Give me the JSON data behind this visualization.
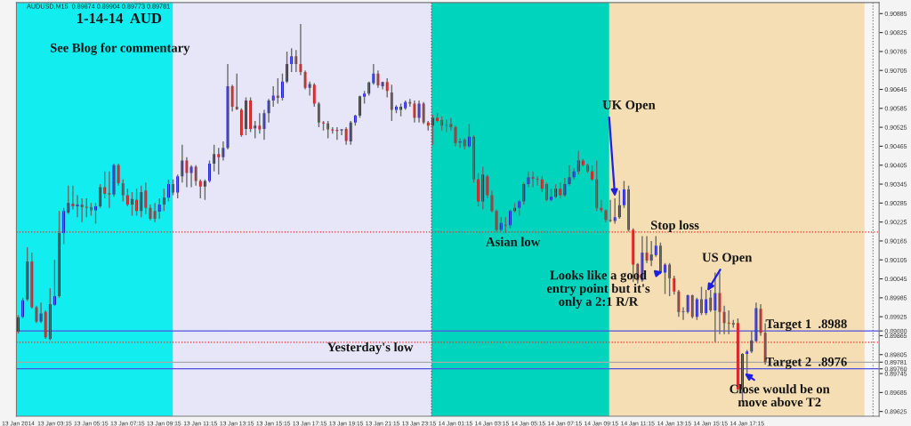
{
  "chart_data": {
    "type": "candlestick",
    "title": "1-14-14  AUD",
    "subtitle": "AUDUSD,M15  0.89874 0.89904 0.89773 0.89781",
    "colors": [
      "#0000e6",
      "#0000e6",
      "#0000e6",
      "#e60000",
      "#e60000",
      "#0000e6",
      "#e60000",
      "#0000e6",
      "#0000e6",
      "#0000e6",
      "#0000e6",
      "#0000e6",
      "#e60000",
      "#0000e6",
      "#e60000",
      "#e60000",
      "#e60000",
      "#0000e6",
      "#0000e6",
      "#e60000",
      "#e60000",
      "#0000e6",
      "#e60000",
      "#e60000",
      "#e60000",
      "#0000e6",
      "#e60000",
      "#0000e6",
      "#e60000",
      "#e60000",
      "#e60000",
      "#0000e6",
      "#0000e6",
      "#0000e6",
      "#e60000",
      "#0000e6",
      "#0000e6",
      "#e60000",
      "#0000e6",
      "#e60000",
      "#e60000",
      "#0000e6",
      "#0000e6",
      "#0000e6",
      "#e60000",
      "#0000e6",
      "#0000e6",
      "#e60000",
      "#e60000",
      "#e60000",
      "#0000e6",
      "#e60000",
      "#0000e6",
      "#e60000",
      "#0000e6",
      "#0000e6",
      "#0000e6",
      "#e60000",
      "#0000e6",
      "#0000e6",
      "#0000e6",
      "#e60000",
      "#e60000",
      "#e60000",
      "#0000e6",
      "#e60000",
      "#e60000",
      "#e60000",
      "#e60000",
      "#e60000",
      "#e60000",
      "#0000e6",
      "#e60000",
      "#0000e6",
      "#0000e6",
      "#0000e6",
      "#0000e6",
      "#0000e6",
      "#0000e6",
      "#e60000",
      "#0000e6",
      "#e60000",
      "#e60000",
      "#0000e6",
      "#0000e6",
      "#0000e6",
      "#e60000",
      "#e60000",
      "#0000e6",
      "#e60000",
      "#e60000",
      "#0000e6",
      "#e60000",
      "#e60000",
      "#0000e6",
      "#e60000",
      "#e60000",
      "#0000e6",
      "#e60000",
      "#0000e6",
      "#e60000",
      "#e60000",
      "#0000e6",
      "#e60000",
      "#e60000",
      "#e60000",
      "#0000e6",
      "#e60000",
      "#0000e6",
      "#0000e6",
      "#0000e6",
      "#0000e6",
      "#0000e6",
      "#e60000",
      "#e60000",
      "#e60000",
      "#e60000",
      "#0000e6",
      "#0000e6",
      "#e60000",
      "#0000e6",
      "#0000e6",
      "#0000e6",
      "#0000e6",
      "#e60000",
      "#e60000",
      "#e60000",
      "#e60000",
      "#e60000",
      "#e60000",
      "#e60000",
      "#0000e6",
      "#0000e6",
      "#0000e6",
      "#e60000",
      "#e60000",
      "#e60000",
      "#0000e6",
      "#e60000",
      "#0000e6",
      "#0000e6",
      "#e60000",
      "#0000e6",
      "#e60000",
      "#e60000",
      "#e60000",
      "#0000e6",
      "#0000e6",
      "#e60000",
      "#0000e6",
      "#e60000",
      "#0000e6",
      "#e60000",
      "#0000e6",
      "#e60000",
      "#e60000",
      "#e60000",
      "#e60000",
      "#e60000",
      "#0000e6",
      "#0000e6",
      "#0000e6",
      "#0000e6",
      "#e60000",
      "#e60000"
    ],
    "x": [
      "2014-01-13T01:15",
      "2014-01-13T01:30",
      "2014-01-13T01:45",
      "2014-01-13T02:00",
      "2014-01-13T02:15",
      "2014-01-13T02:30",
      "2014-01-13T02:45",
      "2014-01-13T03:00",
      "2014-01-13T03:15",
      "2014-01-13T03:30",
      "2014-01-13T03:45",
      "2014-01-13T04:00",
      "2014-01-13T04:15",
      "2014-01-13T04:30",
      "2014-01-13T04:45",
      "2014-01-13T05:00",
      "2014-01-13T05:15",
      "2014-01-13T05:30",
      "2014-01-13T05:45",
      "2014-01-13T06:00",
      "2014-01-13T06:15",
      "2014-01-13T06:30",
      "2014-01-13T06:45",
      "2014-01-13T07:00",
      "2014-01-13T07:15",
      "2014-01-13T07:30",
      "2014-01-13T07:45",
      "2014-01-13T08:00",
      "2014-01-13T08:15",
      "2014-01-13T08:30",
      "2014-01-13T08:45",
      "2014-01-13T09:00",
      "2014-01-13T09:15",
      "2014-01-13T09:30",
      "2014-01-13T09:45",
      "2014-01-13T10:00",
      "2014-01-13T10:15",
      "2014-01-13T10:30",
      "2014-01-13T10:45",
      "2014-01-13T11:00",
      "2014-01-13T11:15",
      "2014-01-13T11:30",
      "2014-01-13T11:45",
      "2014-01-13T12:00",
      "2014-01-13T12:15",
      "2014-01-13T12:30",
      "2014-01-13T12:45",
      "2014-01-13T13:00",
      "2014-01-13T13:15",
      "2014-01-13T13:30",
      "2014-01-13T13:45",
      "2014-01-13T14:00",
      "2014-01-13T14:15",
      "2014-01-13T14:30",
      "2014-01-13T14:45",
      "2014-01-13T15:00",
      "2014-01-13T15:15",
      "2014-01-13T15:30",
      "2014-01-13T15:45",
      "2014-01-13T16:00",
      "2014-01-13T16:15",
      "2014-01-13T16:30",
      "2014-01-13T16:45",
      "2014-01-13T17:00",
      "2014-01-13T17:15",
      "2014-01-13T17:30",
      "2014-01-13T17:45",
      "2014-01-13T18:00",
      "2014-01-13T18:15",
      "2014-01-13T18:30",
      "2014-01-13T18:45",
      "2014-01-13T19:00",
      "2014-01-13T19:15",
      "2014-01-13T19:30",
      "2014-01-13T19:45",
      "2014-01-13T20:00",
      "2014-01-13T20:15",
      "2014-01-13T20:30",
      "2014-01-13T20:45",
      "2014-01-13T21:00",
      "2014-01-13T21:15",
      "2014-01-13T21:30",
      "2014-01-13T21:45",
      "2014-01-13T22:00",
      "2014-01-13T22:15",
      "2014-01-13T22:30",
      "2014-01-13T22:45",
      "2014-01-13T23:00",
      "2014-01-13T23:15",
      "2014-01-13T23:30",
      "2014-01-13T23:45",
      "2014-01-14T00:00",
      "2014-01-14T00:15",
      "2014-01-14T00:30",
      "2014-01-14T00:45",
      "2014-01-14T01:00",
      "2014-01-14T01:15",
      "2014-01-14T01:30",
      "2014-01-14T01:45",
      "2014-01-14T02:00",
      "2014-01-14T02:15",
      "2014-01-14T02:30",
      "2014-01-14T02:45",
      "2014-01-14T03:00",
      "2014-01-14T03:15",
      "2014-01-14T03:30",
      "2014-01-14T03:45",
      "2014-01-14T04:00",
      "2014-01-14T04:15",
      "2014-01-14T04:30",
      "2014-01-14T04:45",
      "2014-01-14T05:00",
      "2014-01-14T05:15",
      "2014-01-14T05:30",
      "2014-01-14T05:45",
      "2014-01-14T06:00",
      "2014-01-14T06:15",
      "2014-01-14T06:30",
      "2014-01-14T06:45",
      "2014-01-14T07:00",
      "2014-01-14T07:15",
      "2014-01-14T07:30",
      "2014-01-14T07:45",
      "2014-01-14T08:00",
      "2014-01-14T08:15",
      "2014-01-14T08:30",
      "2014-01-14T08:45",
      "2014-01-14T09:00",
      "2014-01-14T09:15",
      "2014-01-14T09:30",
      "2014-01-14T09:45",
      "2014-01-14T10:00",
      "2014-01-14T10:15",
      "2014-01-14T10:30",
      "2014-01-14T10:45",
      "2014-01-14T11:00",
      "2014-01-14T11:15",
      "2014-01-14T11:30",
      "2014-01-14T11:45",
      "2014-01-14T12:00",
      "2014-01-14T12:15",
      "2014-01-14T12:30",
      "2014-01-14T12:45",
      "2014-01-14T13:00",
      "2014-01-14T13:15",
      "2014-01-14T13:30",
      "2014-01-14T13:45",
      "2014-01-14T14:00",
      "2014-01-14T14:15",
      "2014-01-14T14:30",
      "2014-01-14T14:45",
      "2014-01-14T15:00",
      "2014-01-14T15:15",
      "2014-01-14T15:30",
      "2014-01-14T15:45",
      "2014-01-14T16:00",
      "2014-01-14T16:15",
      "2014-01-14T16:30",
      "2014-01-14T16:45",
      "2014-01-14T17:00",
      "2014-01-14T17:15",
      "2014-01-14T17:30",
      "2014-01-14T17:45",
      "2014-01-14T18:00",
      "2014-01-14T18:15"
    ],
    "ohlc": [
      [
        0.89878,
        0.8993,
        0.89872,
        0.89923
      ],
      [
        0.89925,
        0.89985,
        0.8992,
        0.89977
      ],
      [
        0.8998,
        0.90145,
        0.89975,
        0.901
      ],
      [
        0.901,
        0.90128,
        0.8995,
        0.89955
      ],
      [
        0.89955,
        0.8996,
        0.89905,
        0.8991
      ],
      [
        0.8991,
        0.8997,
        0.89905,
        0.89935
      ],
      [
        0.8994,
        0.89945,
        0.89855,
        0.8986
      ],
      [
        0.89855,
        0.90015,
        0.8985,
        0.89965
      ],
      [
        0.89963,
        0.90105,
        0.8996,
        0.8999
      ],
      [
        0.8999,
        0.9026,
        0.89985,
        0.9019
      ],
      [
        0.9019,
        0.9027,
        0.90155,
        0.9026
      ],
      [
        0.90255,
        0.9034,
        0.9025,
        0.90285
      ],
      [
        0.90283,
        0.9034,
        0.90265,
        0.90275
      ],
      [
        0.90275,
        0.9031,
        0.9024,
        0.9028
      ],
      [
        0.9028,
        0.903,
        0.90225,
        0.90272
      ],
      [
        0.90272,
        0.903,
        0.9024,
        0.90272
      ],
      [
        0.90272,
        0.90285,
        0.90245,
        0.90262
      ],
      [
        0.90262,
        0.90285,
        0.9022,
        0.90275
      ],
      [
        0.90275,
        0.90345,
        0.9027,
        0.90335
      ],
      [
        0.90335,
        0.90385,
        0.903,
        0.90315
      ],
      [
        0.90316,
        0.90385,
        0.9027,
        0.90312
      ],
      [
        0.90312,
        0.9041,
        0.90305,
        0.90405
      ],
      [
        0.90405,
        0.9041,
        0.9034,
        0.90348
      ],
      [
        0.90348,
        0.9036,
        0.9029,
        0.9031
      ],
      [
        0.9031,
        0.9033,
        0.90275,
        0.9028
      ],
      [
        0.9028,
        0.9032,
        0.90245,
        0.90298
      ],
      [
        0.90295,
        0.9033,
        0.90245,
        0.9026
      ],
      [
        0.9026,
        0.9034,
        0.9024,
        0.9032
      ],
      [
        0.90325,
        0.9035,
        0.9025,
        0.9027
      ],
      [
        0.9027,
        0.9028,
        0.9023,
        0.90235
      ],
      [
        0.9026,
        0.90285,
        0.90225,
        0.90235
      ],
      [
        0.90258,
        0.903,
        0.90235,
        0.9028
      ],
      [
        0.9028,
        0.9033,
        0.9026,
        0.90302
      ],
      [
        0.90302,
        0.9036,
        0.9029,
        0.90345
      ],
      [
        0.90345,
        0.9036,
        0.9031,
        0.90318
      ],
      [
        0.90318,
        0.90375,
        0.903,
        0.9037
      ],
      [
        0.9037,
        0.9047,
        0.9035,
        0.9042
      ],
      [
        0.9042,
        0.9043,
        0.90335,
        0.9038
      ],
      [
        0.9038,
        0.90405,
        0.90335,
        0.904
      ],
      [
        0.904,
        0.90405,
        0.9034,
        0.90355
      ],
      [
        0.90355,
        0.9036,
        0.903,
        0.90337
      ],
      [
        0.90337,
        0.9036,
        0.90295,
        0.90355
      ],
      [
        0.90355,
        0.9042,
        0.9035,
        0.9041
      ],
      [
        0.9041,
        0.9047,
        0.90385,
        0.9044
      ],
      [
        0.9044,
        0.9046,
        0.90375,
        0.9043
      ],
      [
        0.9043,
        0.9048,
        0.9042,
        0.9046
      ],
      [
        0.9046,
        0.90725,
        0.90455,
        0.90655
      ],
      [
        0.90655,
        0.9066,
        0.90575,
        0.9059
      ],
      [
        0.9059,
        0.90695,
        0.9058,
        0.90582
      ],
      [
        0.9058,
        0.90585,
        0.90495,
        0.905
      ],
      [
        0.9052,
        0.9062,
        0.905,
        0.9061
      ],
      [
        0.9061,
        0.9062,
        0.9051,
        0.9052
      ],
      [
        0.90522,
        0.90545,
        0.9049,
        0.9053
      ],
      [
        0.9053,
        0.9057,
        0.90505,
        0.90518
      ],
      [
        0.9052,
        0.9058,
        0.90485,
        0.9057
      ],
      [
        0.9057,
        0.90615,
        0.9054,
        0.9061
      ],
      [
        0.9061,
        0.90655,
        0.9059,
        0.90625
      ],
      [
        0.90625,
        0.9068,
        0.906,
        0.90618
      ],
      [
        0.90618,
        0.90695,
        0.9061,
        0.9067
      ],
      [
        0.9067,
        0.90765,
        0.90665,
        0.90725
      ],
      [
        0.90725,
        0.90775,
        0.907,
        0.9075
      ],
      [
        0.9075,
        0.9077,
        0.907,
        0.90725
      ],
      [
        0.90725,
        0.90852,
        0.9069,
        0.907
      ],
      [
        0.907,
        0.90705,
        0.90645,
        0.9065
      ],
      [
        0.9065,
        0.9067,
        0.90625,
        0.90662
      ],
      [
        0.9066,
        0.90665,
        0.9059,
        0.906
      ],
      [
        0.906,
        0.90605,
        0.90525,
        0.9054
      ],
      [
        0.9054,
        0.90545,
        0.90515,
        0.90537
      ],
      [
        0.90537,
        0.90545,
        0.9049,
        0.90518
      ],
      [
        0.90518,
        0.90525,
        0.90505,
        0.90515
      ],
      [
        0.90515,
        0.90525,
        0.90485,
        0.90515
      ],
      [
        0.90515,
        0.9052,
        0.905,
        0.90518
      ],
      [
        0.9052,
        0.90525,
        0.9047,
        0.90482
      ],
      [
        0.9048,
        0.90545,
        0.9047,
        0.9054
      ],
      [
        0.9054,
        0.90565,
        0.9053,
        0.90562
      ],
      [
        0.90562,
        0.90625,
        0.90555,
        0.90623
      ],
      [
        0.90622,
        0.9064,
        0.906,
        0.90632
      ],
      [
        0.90632,
        0.9067,
        0.90625,
        0.90667
      ],
      [
        0.90665,
        0.90725,
        0.9066,
        0.90695
      ],
      [
        0.90695,
        0.90705,
        0.9065,
        0.90658
      ],
      [
        0.90655,
        0.9067,
        0.90645,
        0.90668
      ],
      [
        0.90668,
        0.9068,
        0.9062,
        0.9064
      ],
      [
        0.90635,
        0.9066,
        0.90545,
        0.9058
      ],
      [
        0.9058,
        0.90595,
        0.9057,
        0.9059
      ],
      [
        0.9058,
        0.906,
        0.9056,
        0.9059
      ],
      [
        0.90585,
        0.9061,
        0.9058,
        0.90605
      ],
      [
        0.90605,
        0.90615,
        0.9059,
        0.906
      ],
      [
        0.906,
        0.9061,
        0.9054,
        0.90555
      ],
      [
        0.90555,
        0.9061,
        0.9054,
        0.906
      ],
      [
        0.906,
        0.90605,
        0.90535,
        0.9054
      ],
      [
        0.9054,
        0.90545,
        0.90515,
        0.9053
      ],
      [
        0.9053,
        0.90565,
        0.9047,
        0.90555
      ],
      [
        0.90555,
        0.9057,
        0.9054,
        0.90545
      ],
      [
        0.90548,
        0.9056,
        0.90515,
        0.9053
      ],
      [
        0.9053,
        0.9055,
        0.9051,
        0.90532
      ],
      [
        0.90535,
        0.90555,
        0.90515,
        0.90525
      ],
      [
        0.90525,
        0.9053,
        0.90465,
        0.90475
      ],
      [
        0.90477,
        0.9049,
        0.9046,
        0.9048
      ],
      [
        0.90485,
        0.9049,
        0.90455,
        0.90465
      ],
      [
        0.90465,
        0.90535,
        0.9046,
        0.90495
      ],
      [
        0.90495,
        0.905,
        0.9035,
        0.9036
      ],
      [
        0.9036,
        0.9038,
        0.90275,
        0.9029
      ],
      [
        0.9029,
        0.904,
        0.90265,
        0.90375
      ],
      [
        0.9037,
        0.90375,
        0.903,
        0.9031
      ],
      [
        0.9031,
        0.90325,
        0.90255,
        0.9026
      ],
      [
        0.9026,
        0.90265,
        0.90195,
        0.902
      ],
      [
        0.902,
        0.9024,
        0.90195,
        0.90222
      ],
      [
        0.90215,
        0.9024,
        0.9019,
        0.90215
      ],
      [
        0.90215,
        0.90265,
        0.90205,
        0.9026
      ],
      [
        0.9026,
        0.90285,
        0.90255,
        0.9027
      ],
      [
        0.9027,
        0.90295,
        0.90245,
        0.9029
      ],
      [
        0.9029,
        0.9035,
        0.9028,
        0.90345
      ],
      [
        0.90345,
        0.90385,
        0.90335,
        0.90367
      ],
      [
        0.90367,
        0.90385,
        0.90335,
        0.90362
      ],
      [
        0.90362,
        0.9037,
        0.9034,
        0.9036
      ],
      [
        0.9036,
        0.9037,
        0.9032,
        0.9033
      ],
      [
        0.90345,
        0.9035,
        0.9029,
        0.90295
      ],
      [
        0.90295,
        0.9033,
        0.9029,
        0.90305
      ],
      [
        0.90305,
        0.90345,
        0.903,
        0.9033
      ],
      [
        0.9033,
        0.9035,
        0.903,
        0.9031
      ],
      [
        0.9031,
        0.90365,
        0.90305,
        0.90345
      ],
      [
        0.90345,
        0.90405,
        0.9034,
        0.90367
      ],
      [
        0.90367,
        0.90395,
        0.9036,
        0.90385
      ],
      [
        0.90385,
        0.9045,
        0.90375,
        0.9042
      ],
      [
        0.9042,
        0.90425,
        0.904,
        0.90405
      ],
      [
        0.90405,
        0.9041,
        0.9038,
        0.90385
      ],
      [
        0.90385,
        0.90405,
        0.90355,
        0.9036
      ],
      [
        0.9036,
        0.9042,
        0.9026,
        0.9027
      ],
      [
        0.9027,
        0.90295,
        0.90255,
        0.90262
      ],
      [
        0.90262,
        0.90265,
        0.90225,
        0.90232
      ],
      [
        0.90232,
        0.90295,
        0.90225,
        0.90228
      ],
      [
        0.90228,
        0.903,
        0.9022,
        0.9024
      ],
      [
        0.9024,
        0.90325,
        0.90235,
        0.90278
      ],
      [
        0.90278,
        0.90355,
        0.9027,
        0.90328
      ],
      [
        0.90328,
        0.9034,
        0.90195,
        0.902
      ],
      [
        0.902,
        0.90205,
        0.90035,
        0.9009
      ],
      [
        0.90092,
        0.90095,
        0.9003,
        0.9004
      ],
      [
        0.9004,
        0.9018,
        0.90035,
        0.90128
      ],
      [
        0.90128,
        0.9018,
        0.90095,
        0.90103
      ],
      [
        0.90103,
        0.90165,
        0.90085,
        0.90122
      ],
      [
        0.9012,
        0.9018,
        0.90115,
        0.9015
      ],
      [
        0.9015,
        0.9016,
        0.9006,
        0.90065
      ],
      [
        0.90065,
        0.90095,
        0.89997,
        0.9009
      ],
      [
        0.9009,
        0.90095,
        0.8999,
        0.90047
      ],
      [
        0.90047,
        0.90055,
        0.89995,
        0.90005
      ],
      [
        0.90005,
        0.9001,
        0.89925,
        0.8994
      ],
      [
        0.8994,
        0.89955,
        0.89915,
        0.89942
      ],
      [
        0.8994,
        0.89995,
        0.89935,
        0.89993
      ],
      [
        0.89993,
        0.89995,
        0.8992,
        0.89925
      ],
      [
        0.89925,
        0.89985,
        0.89915,
        0.8998
      ],
      [
        0.8998,
        0.9002,
        0.8993,
        0.89937
      ],
      [
        0.89937,
        0.9001,
        0.8993,
        0.8998
      ],
      [
        0.89985,
        0.9001,
        0.8994,
        0.89945
      ],
      [
        0.89945,
        0.90065,
        0.89845,
        0.9
      ],
      [
        0.9,
        0.90065,
        0.8987,
        0.8994
      ],
      [
        0.8994,
        0.8996,
        0.8987,
        0.89905
      ],
      [
        0.89905,
        0.89945,
        0.8987,
        0.89905
      ],
      [
        0.89905,
        0.89915,
        0.8989,
        0.899
      ],
      [
        0.89905,
        0.8992,
        0.89685,
        0.89695
      ],
      [
        0.89695,
        0.8981,
        0.89655,
        0.89807
      ],
      [
        0.89807,
        0.8982,
        0.89745,
        0.89815
      ],
      [
        0.89815,
        0.8988,
        0.8981,
        0.8985
      ],
      [
        0.89848,
        0.8997,
        0.89845,
        0.89952
      ],
      [
        0.8995,
        0.89965,
        0.89865,
        0.89874
      ],
      [
        0.89874,
        0.89904,
        0.89773,
        0.89781
      ]
    ],
    "xlim": [
      "2014-01-13T01:09",
      "2014-01-15T00:30"
    ],
    "ylim": [
      0.8961,
      0.9092
    ],
    "xticks": [
      {
        "value": "2014-01-13T01:15",
        "label": "13 Jan 2014"
      },
      {
        "value": "2014-01-13T03:15",
        "label": "13 Jan 03:15"
      },
      {
        "value": "2014-01-13T05:15",
        "label": "13 Jan 05:15"
      },
      {
        "value": "2014-01-13T07:15",
        "label": "13 Jan 07:15"
      },
      {
        "value": "2014-01-13T09:15",
        "label": "13 Jan 09:15"
      },
      {
        "value": "2014-01-13T11:15",
        "label": "13 Jan 11:15"
      },
      {
        "value": "2014-01-13T13:15",
        "label": "13 Jan 13:15"
      },
      {
        "value": "2014-01-13T15:15",
        "label": "13 Jan 15:15"
      },
      {
        "value": "2014-01-13T17:15",
        "label": "13 Jan 17:15"
      },
      {
        "value": "2014-01-13T19:15",
        "label": "13 Jan 19:15"
      },
      {
        "value": "2014-01-13T21:15",
        "label": "13 Jan 21:15"
      },
      {
        "value": "2014-01-13T23:15",
        "label": "13 Jan 23:15"
      },
      {
        "value": "2014-01-14T01:15",
        "label": "14 Jan 01:15"
      },
      {
        "value": "2014-01-14T03:15",
        "label": "14 Jan 03:15"
      },
      {
        "value": "2014-01-14T05:15",
        "label": "14 Jan 05:15"
      },
      {
        "value": "2014-01-14T07:15",
        "label": "14 Jan 07:15"
      },
      {
        "value": "2014-01-14T09:15",
        "label": "14 Jan 09:15"
      },
      {
        "value": "2014-01-14T11:15",
        "label": "14 Jan 11:15"
      },
      {
        "value": "2014-01-14T13:15",
        "label": "14 Jan 13:15"
      },
      {
        "value": "2014-01-14T15:15",
        "label": "14 Jan 15:15"
      },
      {
        "value": "2014-01-14T17:15",
        "label": "14 Jan 17:15"
      }
    ],
    "yticks": [
      0.90885,
      0.90825,
      0.90765,
      0.90705,
      0.90645,
      0.90585,
      0.90525,
      0.90465,
      0.90405,
      0.90345,
      0.90285,
      0.90225,
      0.90165,
      0.90105,
      0.90045,
      0.89985,
      0.89925,
      0.89865,
      0.89805,
      0.89745,
      0.89685,
      0.89625,
      {
        "value": 0.8988,
        "label": "0.89880"
      },
      {
        "value": 0.89781,
        "label": "0.89781"
      },
      {
        "value": 0.8976,
        "label": "0.89760"
      }
    ],
    "bands": [
      {
        "axis": "x",
        "from": "2014-01-13T01:09",
        "to": "2014-01-13T23:56",
        "color": "#e6e6f8"
      },
      {
        "axis": "x",
        "from": "2014-01-13T01:09",
        "to": "2014-01-13T09:44",
        "color": "#12eef0"
      },
      {
        "axis": "x",
        "from": "2014-01-13T23:56",
        "to": "2014-01-14T23:42",
        "color": "#f5deb3"
      },
      {
        "axis": "x",
        "from": "2014-01-13T23:56",
        "to": "2014-01-14T09:41",
        "color": "#00d4bc"
      }
    ],
    "ref_lines": [
      {
        "axis": "x",
        "value": "2014-01-13T23:56",
        "color": "#555555",
        "line_style": "dotted"
      },
      {
        "axis": "x",
        "value": "2014-01-15T00:10",
        "color": "#777777",
        "line_style": "dotted"
      },
      {
        "axis": "y",
        "value": 0.8988,
        "label": "Target 1  .8988",
        "color": "#5050e0",
        "line_style": "solid"
      },
      {
        "axis": "y",
        "value": 0.8976,
        "label": "Target 2  .8976",
        "color": "#5050e0",
        "line_style": "solid"
      },
      {
        "axis": "y",
        "value": 0.89781,
        "color": "#a8a8a8",
        "line_style": "solid"
      },
      {
        "axis": "y",
        "value": 0.89844,
        "label": "Yesterday's low",
        "color": "#ff2020",
        "line_style": "dotted"
      },
      {
        "axis": "y",
        "value": 0.90193,
        "label": "Stop loss",
        "color": "#ff2020",
        "line_style": "dotted"
      }
    ],
    "annotations": [
      "See Blog for commentary",
      "UK Open",
      {
        "text": "US Open",
        "x": "2014-01-14T15:00",
        "y": 0.9
      },
      {
        "text": "Looks like a good\nentry point but it's\nonly a 2:1 R/R",
        "x": "2014-01-14T12:45",
        "y": 0.9007
      },
      {
        "text": "Close would be on\nmove above T2",
        "x": "2014-01-14T17:00",
        "y": 0.8975
      },
      {
        "text": "Asian low",
        "x": "2014-01-14T04:00",
        "y": 0.9019
      }
    ],
    "grid": false
  }
}
